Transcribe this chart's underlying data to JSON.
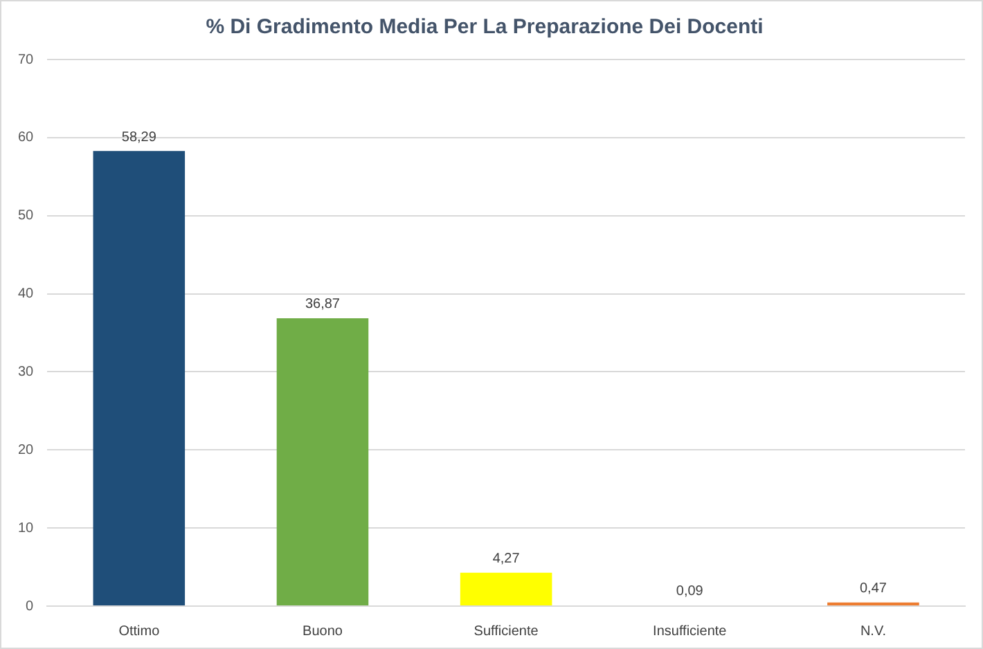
{
  "chart_data": {
    "type": "bar",
    "title": "% Di Gradimento Media Per La Preparazione Dei Docenti",
    "categories": [
      "Ottimo",
      "Buono",
      "Sufficiente",
      "Insufficiente",
      "N.V."
    ],
    "values": [
      58.29,
      36.87,
      4.27,
      0.09,
      0.47
    ],
    "colors": [
      "#1f4e79",
      "#70ad47",
      "#ffff00",
      "#a5a5a5",
      "#ed7d31"
    ],
    "value_labels": [
      "58,29",
      "36,87",
      "4,27",
      "0,09",
      "0,47"
    ],
    "ylim": [
      0,
      70
    ],
    "yticks": [
      0,
      10,
      20,
      30,
      40,
      50,
      60,
      70
    ],
    "grid": "y"
  }
}
